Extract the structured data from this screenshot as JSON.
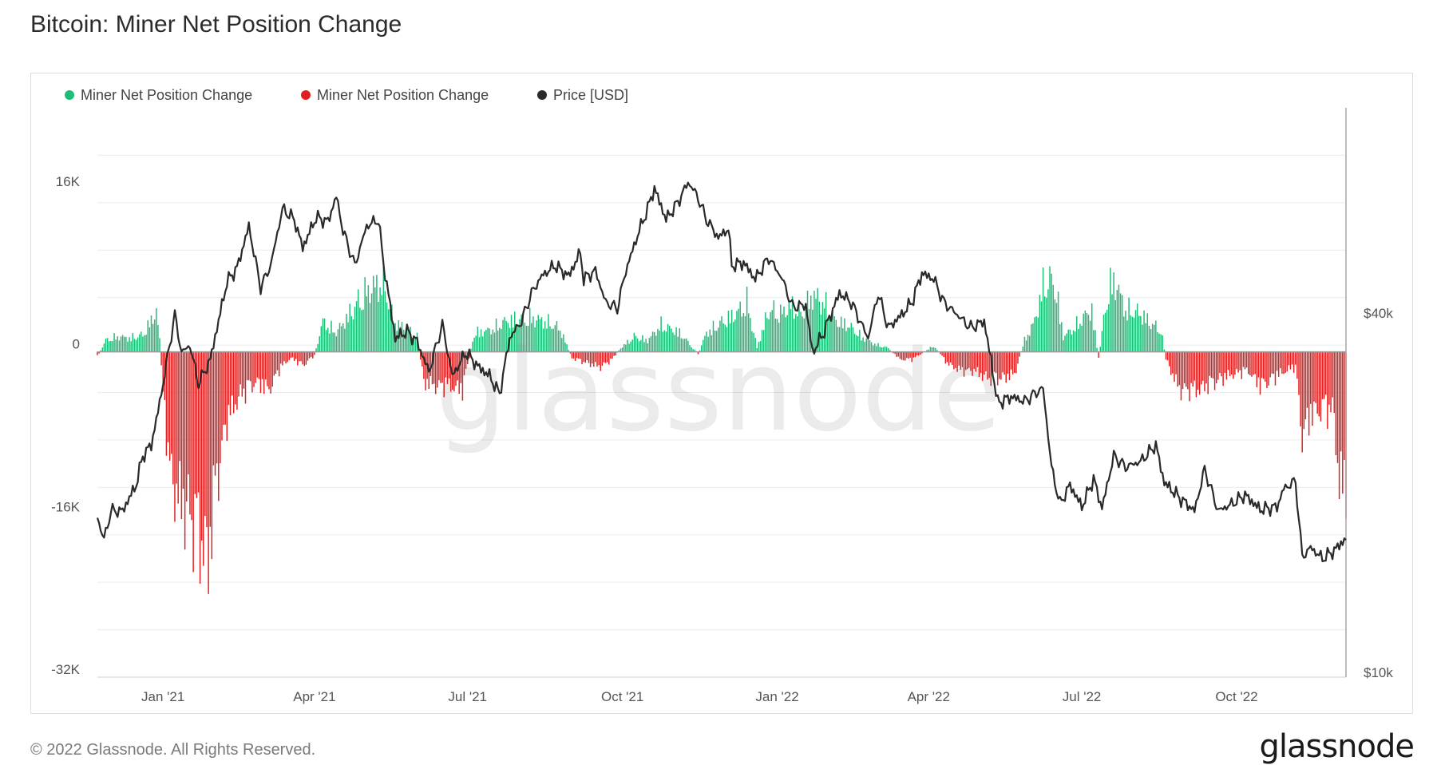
{
  "page": {
    "title": "Bitcoin: Miner Net Position Change",
    "footer": "© 2022 Glassnode. All Rights Reserved.",
    "brand": "glassnode",
    "watermark": "glassnode"
  },
  "colors": {
    "positive": "#1ebd78",
    "negative": "#e02020",
    "price": "#2a2a2a",
    "grid": "#ececec",
    "zero_line": "#9a9a9a"
  },
  "chart_data": {
    "type": "bar",
    "title": "Bitcoin: Miner Net Position Change",
    "legend": [
      {
        "name": "Miner Net Position Change",
        "color": "#1ebd78"
      },
      {
        "name": "Miner Net Position Change",
        "color": "#e02020"
      },
      {
        "name": "Price [USD]",
        "color": "#2a2a2a"
      }
    ],
    "legend_placement": "top-left",
    "x_range": [
      "2020-11-23",
      "2022-12-05"
    ],
    "x_tick_labels": [
      "Jan '21",
      "Apr '21",
      "Jul '21",
      "Oct '21",
      "Jan '22",
      "Apr '22",
      "Jul '22",
      "Oct '22"
    ],
    "x_tick_dates": [
      "2021-01-01",
      "2021-04-01",
      "2021-07-01",
      "2021-10-01",
      "2022-01-01",
      "2022-04-01",
      "2022-07-01",
      "2022-10-01"
    ],
    "y_left": {
      "ticks": [
        -32000,
        -16000,
        0,
        16000
      ],
      "tick_labels": [
        "-32K",
        "-16K",
        "0",
        "16K"
      ],
      "range": [
        -32000,
        24000
      ]
    },
    "y_right": {
      "scale": "log",
      "ticks": [
        10000,
        40000
      ],
      "tick_labels": [
        "$10k",
        "$40k"
      ],
      "range": [
        10000,
        90000
      ]
    },
    "grid": true,
    "net_position_anchors": [
      [
        "2020-11-23",
        -600
      ],
      [
        "2020-11-28",
        1500
      ],
      [
        "2020-12-05",
        2000
      ],
      [
        "2020-12-12",
        1800
      ],
      [
        "2020-12-20",
        2200
      ],
      [
        "2020-12-28",
        5200
      ],
      [
        "2020-12-30",
        1500
      ],
      [
        "2021-01-01",
        -6000
      ],
      [
        "2021-01-06",
        -17000
      ],
      [
        "2021-01-12",
        -20000
      ],
      [
        "2021-01-18",
        -22000
      ],
      [
        "2021-01-24",
        -25000
      ],
      [
        "2021-01-28",
        -27000
      ],
      [
        "2021-02-01",
        -18000
      ],
      [
        "2021-02-08",
        -9000
      ],
      [
        "2021-02-15",
        -6000
      ],
      [
        "2021-02-25",
        -4000
      ],
      [
        "2021-03-05",
        -5000
      ],
      [
        "2021-03-12",
        -2000
      ],
      [
        "2021-03-18",
        -800
      ],
      [
        "2021-03-25",
        -1800
      ],
      [
        "2021-04-01",
        -500
      ],
      [
        "2021-04-06",
        4000
      ],
      [
        "2021-04-14",
        2500
      ],
      [
        "2021-04-22",
        5000
      ],
      [
        "2021-04-30",
        7500
      ],
      [
        "2021-05-06",
        8500
      ],
      [
        "2021-05-12",
        9000
      ],
      [
        "2021-05-18",
        4000
      ],
      [
        "2021-05-25",
        3000
      ],
      [
        "2021-06-01",
        2000
      ],
      [
        "2021-06-05",
        -4000
      ],
      [
        "2021-06-12",
        -4500
      ],
      [
        "2021-06-20",
        -4500
      ],
      [
        "2021-06-28",
        -5000
      ],
      [
        "2021-07-05",
        2500
      ],
      [
        "2021-07-14",
        2800
      ],
      [
        "2021-07-24",
        4000
      ],
      [
        "2021-08-05",
        4500
      ],
      [
        "2021-08-16",
        4000
      ],
      [
        "2021-08-25",
        3000
      ],
      [
        "2021-09-01",
        -800
      ],
      [
        "2021-09-10",
        -1500
      ],
      [
        "2021-09-18",
        -2000
      ],
      [
        "2021-09-25",
        -1000
      ],
      [
        "2021-09-30",
        500
      ],
      [
        "2021-10-08",
        2000
      ],
      [
        "2021-10-16",
        1500
      ],
      [
        "2021-10-24",
        3500
      ],
      [
        "2021-11-04",
        2500
      ],
      [
        "2021-11-10",
        1000
      ],
      [
        "2021-11-15",
        -300
      ],
      [
        "2021-11-20",
        2500
      ],
      [
        "2021-11-30",
        4000
      ],
      [
        "2021-12-08",
        5000
      ],
      [
        "2021-12-14",
        6500
      ],
      [
        "2021-12-20",
        500
      ],
      [
        "2021-12-27",
        5500
      ],
      [
        "2022-01-03",
        5000
      ],
      [
        "2022-01-10",
        6000
      ],
      [
        "2022-01-16",
        5000
      ],
      [
        "2022-01-22",
        7500
      ],
      [
        "2022-01-30",
        6000
      ],
      [
        "2022-02-05",
        4000
      ],
      [
        "2022-02-12",
        3500
      ],
      [
        "2022-02-20",
        2000
      ],
      [
        "2022-02-28",
        1000
      ],
      [
        "2022-03-08",
        500
      ],
      [
        "2022-03-15",
        -1000
      ],
      [
        "2022-03-22",
        -1000
      ],
      [
        "2022-03-28",
        -200
      ],
      [
        "2022-04-04",
        800
      ],
      [
        "2022-04-12",
        -1500
      ],
      [
        "2022-04-20",
        -2500
      ],
      [
        "2022-04-28",
        -2500
      ],
      [
        "2022-05-06",
        -3500
      ],
      [
        "2022-05-14",
        -3500
      ],
      [
        "2022-05-22",
        -3000
      ],
      [
        "2022-05-28",
        1500
      ],
      [
        "2022-06-03",
        4000
      ],
      [
        "2022-06-09",
        9500
      ],
      [
        "2022-06-15",
        9000
      ],
      [
        "2022-06-20",
        2000
      ],
      [
        "2022-06-26",
        3000
      ],
      [
        "2022-07-02",
        4500
      ],
      [
        "2022-07-07",
        5500
      ],
      [
        "2022-07-11",
        -1000
      ],
      [
        "2022-07-16",
        7500
      ],
      [
        "2022-07-20",
        9500
      ],
      [
        "2022-07-27",
        5500
      ],
      [
        "2022-08-05",
        5000
      ],
      [
        "2022-08-12",
        3500
      ],
      [
        "2022-08-17",
        3000
      ],
      [
        "2022-08-20",
        -1000
      ],
      [
        "2022-08-28",
        -5000
      ],
      [
        "2022-09-08",
        -5000
      ],
      [
        "2022-09-18",
        -4000
      ],
      [
        "2022-09-28",
        -3000
      ],
      [
        "2022-10-08",
        -2500
      ],
      [
        "2022-10-15",
        -4500
      ],
      [
        "2022-10-23",
        -3500
      ],
      [
        "2022-10-30",
        -2500
      ],
      [
        "2022-11-05",
        -2000
      ],
      [
        "2022-11-09",
        -11000
      ],
      [
        "2022-11-15",
        -8000
      ],
      [
        "2022-11-22",
        -7500
      ],
      [
        "2022-11-28",
        -8000
      ],
      [
        "2022-12-01",
        -18000
      ],
      [
        "2022-12-05",
        -17000
      ]
    ],
    "price_anchors_usd": [
      [
        "2020-11-23",
        18500
      ],
      [
        "2020-11-27",
        17000
      ],
      [
        "2020-12-01",
        19000
      ],
      [
        "2020-12-08",
        19000
      ],
      [
        "2020-12-16",
        21000
      ],
      [
        "2020-12-20",
        23500
      ],
      [
        "2020-12-25",
        24500
      ],
      [
        "2020-12-30",
        28800
      ],
      [
        "2021-01-03",
        33500
      ],
      [
        "2021-01-08",
        40500
      ],
      [
        "2021-01-12",
        35000
      ],
      [
        "2021-01-17",
        36000
      ],
      [
        "2021-01-22",
        31000
      ],
      [
        "2021-01-29",
        34000
      ],
      [
        "2021-02-08",
        46000
      ],
      [
        "2021-02-14",
        48500
      ],
      [
        "2021-02-21",
        57000
      ],
      [
        "2021-02-28",
        45000
      ],
      [
        "2021-03-06",
        49000
      ],
      [
        "2021-03-13",
        61000
      ],
      [
        "2021-03-20",
        58500
      ],
      [
        "2021-03-25",
        52500
      ],
      [
        "2021-04-02",
        59000
      ],
      [
        "2021-04-09",
        58000
      ],
      [
        "2021-04-14",
        64000
      ],
      [
        "2021-04-18",
        56000
      ],
      [
        "2021-04-25",
        49000
      ],
      [
        "2021-05-02",
        57000
      ],
      [
        "2021-05-09",
        58500
      ],
      [
        "2021-05-12",
        49500
      ],
      [
        "2021-05-19",
        37000
      ],
      [
        "2021-05-26",
        38000
      ],
      [
        "2021-06-01",
        36500
      ],
      [
        "2021-06-08",
        32500
      ],
      [
        "2021-06-16",
        39000
      ],
      [
        "2021-06-22",
        32000
      ],
      [
        "2021-06-30",
        35000
      ],
      [
        "2021-07-08",
        33000
      ],
      [
        "2021-07-14",
        32000
      ],
      [
        "2021-07-20",
        29800
      ],
      [
        "2021-07-26",
        37000
      ],
      [
        "2021-08-02",
        39500
      ],
      [
        "2021-08-08",
        44000
      ],
      [
        "2021-08-14",
        47000
      ],
      [
        "2021-08-22",
        49000
      ],
      [
        "2021-08-30",
        47000
      ],
      [
        "2021-09-06",
        51500
      ],
      [
        "2021-09-08",
        46500
      ],
      [
        "2021-09-15",
        48000
      ],
      [
        "2021-09-21",
        42500
      ],
      [
        "2021-09-28",
        41500
      ],
      [
        "2021-10-03",
        48000
      ],
      [
        "2021-10-10",
        55000
      ],
      [
        "2021-10-16",
        61000
      ],
      [
        "2021-10-20",
        66000
      ],
      [
        "2021-10-27",
        58500
      ],
      [
        "2021-11-03",
        62500
      ],
      [
        "2021-11-09",
        67500
      ],
      [
        "2021-11-14",
        64500
      ],
      [
        "2021-11-20",
        58500
      ],
      [
        "2021-11-27",
        54500
      ],
      [
        "2021-12-03",
        56500
      ],
      [
        "2021-12-05",
        49000
      ],
      [
        "2021-12-12",
        49500
      ],
      [
        "2021-12-19",
        46500
      ],
      [
        "2021-12-27",
        50500
      ],
      [
        "2022-01-04",
        46500
      ],
      [
        "2022-01-10",
        41800
      ],
      [
        "2022-01-18",
        42000
      ],
      [
        "2022-01-22",
        35000
      ],
      [
        "2022-01-28",
        37500
      ],
      [
        "2022-02-07",
        44000
      ],
      [
        "2022-02-14",
        42500
      ],
      [
        "2022-02-24",
        37000
      ],
      [
        "2022-03-02",
        44000
      ],
      [
        "2022-03-08",
        38500
      ],
      [
        "2022-03-16",
        40500
      ],
      [
        "2022-03-22",
        42500
      ],
      [
        "2022-03-28",
        47500
      ],
      [
        "2022-04-04",
        46500
      ],
      [
        "2022-04-10",
        42500
      ],
      [
        "2022-04-18",
        40500
      ],
      [
        "2022-04-26",
        38500
      ],
      [
        "2022-05-04",
        39500
      ],
      [
        "2022-05-08",
        34000
      ],
      [
        "2022-05-12",
        28800
      ],
      [
        "2022-05-20",
        29500
      ],
      [
        "2022-05-28",
        29000
      ],
      [
        "2022-06-04",
        30000
      ],
      [
        "2022-06-08",
        30500
      ],
      [
        "2022-06-13",
        22500
      ],
      [
        "2022-06-18",
        19500
      ],
      [
        "2022-06-24",
        21000
      ],
      [
        "2022-07-01",
        19300
      ],
      [
        "2022-07-08",
        21500
      ],
      [
        "2022-07-13",
        19200
      ],
      [
        "2022-07-20",
        23500
      ],
      [
        "2022-07-27",
        22500
      ],
      [
        "2022-08-05",
        23000
      ],
      [
        "2022-08-14",
        24500
      ],
      [
        "2022-08-19",
        21200
      ],
      [
        "2022-08-28",
        20000
      ],
      [
        "2022-09-06",
        19000
      ],
      [
        "2022-09-12",
        22300
      ],
      [
        "2022-09-20",
        19000
      ],
      [
        "2022-09-28",
        19500
      ],
      [
        "2022-10-06",
        20200
      ],
      [
        "2022-10-15",
        19100
      ],
      [
        "2022-10-25",
        19300
      ],
      [
        "2022-10-29",
        20700
      ],
      [
        "2022-11-05",
        21300
      ],
      [
        "2022-11-09",
        15900
      ],
      [
        "2022-11-14",
        16500
      ],
      [
        "2022-11-21",
        15800
      ],
      [
        "2022-11-28",
        16300
      ],
      [
        "2022-12-05",
        17100
      ]
    ]
  }
}
